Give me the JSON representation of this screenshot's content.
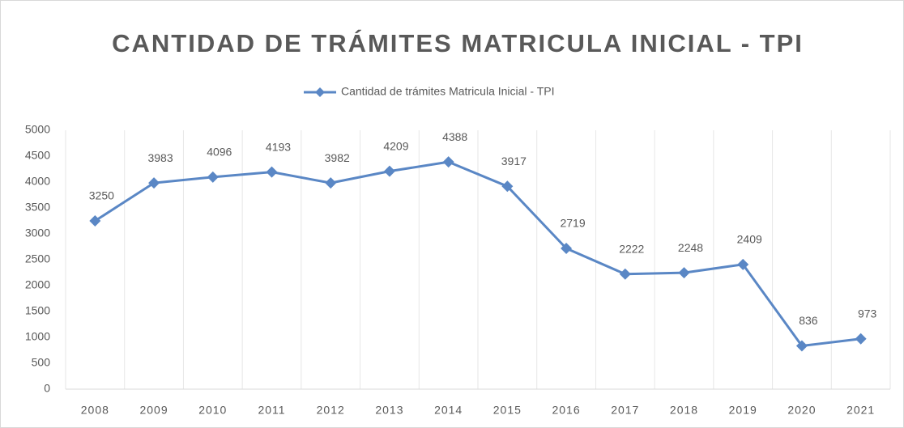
{
  "chart_data": {
    "type": "line",
    "title": "CANTIDAD DE TRÁMITES MATRICULA INICIAL - TPI",
    "categories": [
      "2008",
      "2009",
      "2010",
      "2011",
      "2012",
      "2013",
      "2014",
      "2015",
      "2016",
      "2017",
      "2018",
      "2019",
      "2020",
      "2021"
    ],
    "series": [
      {
        "name": "Cantidad de trámites Matricula Inicial - TPI",
        "color": "#5a87c5",
        "values": [
          3250,
          3983,
          4096,
          4193,
          3982,
          4209,
          4388,
          3917,
          2719,
          2222,
          2248,
          2409,
          836,
          973
        ]
      }
    ],
    "ylim": [
      0,
      5000
    ],
    "yticks": [
      0,
      500,
      1000,
      1500,
      2000,
      2500,
      3000,
      3500,
      4000,
      4500,
      5000
    ],
    "grid": true,
    "legend": "top",
    "data_labels": true
  }
}
